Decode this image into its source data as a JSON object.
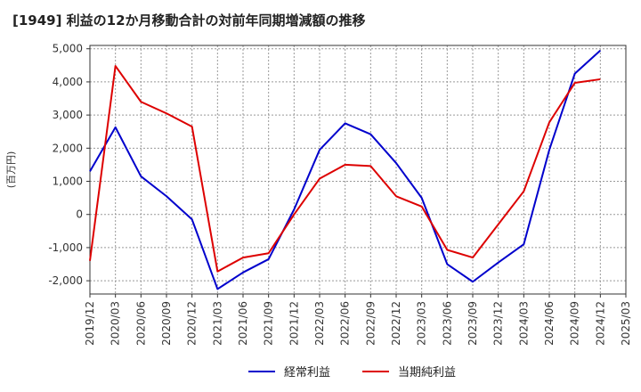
{
  "chart_data": {
    "type": "line",
    "title": "[1949]  利益の12か月移動合計の対前年同期増減額の推移",
    "xlabel": "",
    "ylabel": "(百万円)",
    "ylim": [
      -2400,
      5100
    ],
    "yticks": [
      5000,
      4000,
      3000,
      2000,
      1000,
      0,
      -1000,
      -2000
    ],
    "ytick_labels": [
      "5,000",
      "4,000",
      "3,000",
      "2,000",
      "1,000",
      "0",
      "-1,000",
      "-2,000"
    ],
    "categories": [
      "2019/12",
      "2020/03",
      "2020/06",
      "2020/09",
      "2020/12",
      "2021/03",
      "2021/06",
      "2021/09",
      "2021/12",
      "2022/03",
      "2022/06",
      "2022/09",
      "2022/12",
      "2023/03",
      "2023/06",
      "2023/09",
      "2023/12",
      "2024/03",
      "2024/06",
      "2024/09",
      "2024/12",
      "2025/03"
    ],
    "grid": true,
    "legend_position": "bottom",
    "series": [
      {
        "name": "経常利益",
        "color": "#0000cc",
        "values": [
          1300,
          2630,
          1150,
          550,
          -150,
          -2250,
          -1750,
          -1350,
          150,
          1950,
          2750,
          2420,
          1550,
          500,
          -1500,
          -2030,
          -1450,
          -900,
          1950,
          4250,
          4950,
          null
        ]
      },
      {
        "name": "当期純利益",
        "color": "#dd0000",
        "values": [
          -1400,
          4480,
          3400,
          3050,
          2650,
          -1720,
          -1300,
          -1170,
          0,
          1080,
          1500,
          1460,
          550,
          240,
          -1070,
          -1300,
          -300,
          700,
          2780,
          3970,
          4080,
          null
        ]
      }
    ]
  }
}
